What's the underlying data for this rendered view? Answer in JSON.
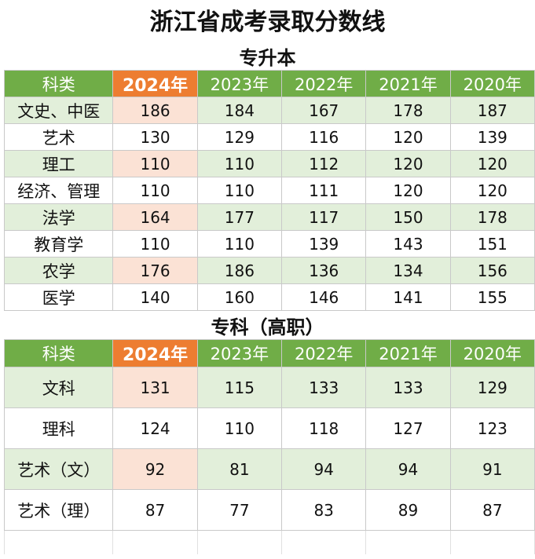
{
  "title": "浙江省成考录取分数线",
  "sections": [
    {
      "heading": "专升本",
      "headers": [
        "科类",
        "2024年",
        "2023年",
        "2022年",
        "2021年",
        "2020年"
      ],
      "rows": [
        {
          "category": "文史、中医",
          "values": [
            "186",
            "184",
            "167",
            "178",
            "187"
          ]
        },
        {
          "category": "艺术",
          "values": [
            "130",
            "129",
            "116",
            "120",
            "139"
          ]
        },
        {
          "category": "理工",
          "values": [
            "110",
            "110",
            "112",
            "120",
            "120"
          ]
        },
        {
          "category": "经济、管理",
          "values": [
            "110",
            "110",
            "111",
            "120",
            "120"
          ]
        },
        {
          "category": "法学",
          "values": [
            "164",
            "177",
            "117",
            "150",
            "178"
          ]
        },
        {
          "category": "教育学",
          "values": [
            "110",
            "110",
            "139",
            "143",
            "151"
          ]
        },
        {
          "category": "农学",
          "values": [
            "176",
            "186",
            "136",
            "134",
            "156"
          ]
        },
        {
          "category": "医学",
          "values": [
            "140",
            "160",
            "146",
            "141",
            "155"
          ]
        }
      ]
    },
    {
      "heading": "专科（高职）",
      "headers": [
        "科类",
        "2024年",
        "2023年",
        "2022年",
        "2021年",
        "2020年"
      ],
      "rows": [
        {
          "category": "文科",
          "values": [
            "131",
            "115",
            "133",
            "133",
            "129"
          ]
        },
        {
          "category": "理科",
          "values": [
            "124",
            "110",
            "118",
            "127",
            "123"
          ]
        },
        {
          "category": "艺术（文）",
          "values": [
            "92",
            "81",
            "94",
            "94",
            "91"
          ]
        },
        {
          "category": "艺术（理）",
          "values": [
            "87",
            "77",
            "83",
            "89",
            "87"
          ]
        }
      ]
    }
  ],
  "colors": {
    "header_green": "#70ad47",
    "header_orange": "#ed7d31",
    "row_alt_green": "#e2efda",
    "highlight_peach": "#fbe2d5"
  }
}
